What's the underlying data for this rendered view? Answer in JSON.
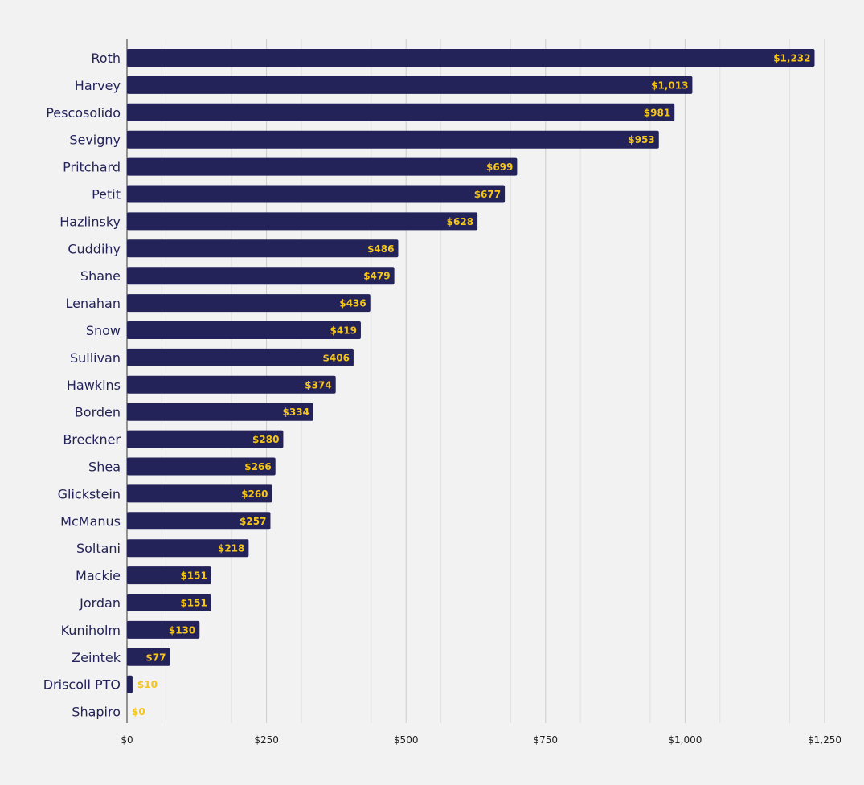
{
  "chart_data": {
    "type": "bar",
    "orientation": "horizontal",
    "categories": [
      "Roth",
      "Harvey",
      "Pescosolido",
      "Sevigny",
      "Pritchard",
      "Petit",
      "Hazlinsky",
      "Cuddihy",
      "Shane",
      "Lenahan",
      "Snow",
      "Sullivan",
      "Hawkins",
      "Borden",
      "Breckner",
      "Shea",
      "Glickstein",
      "McManus",
      "Soltani",
      "Mackie",
      "Jordan",
      "Kuniholm",
      "Zeintek",
      "Driscoll PTO",
      "Shapiro"
    ],
    "values": [
      1232,
      1013,
      981,
      953,
      699,
      677,
      628,
      486,
      479,
      436,
      419,
      406,
      374,
      334,
      280,
      266,
      260,
      257,
      218,
      151,
      151,
      130,
      77,
      10,
      0
    ],
    "data_labels": [
      "$1,232",
      "$1,013",
      "$981",
      "$953",
      "$699",
      "$677",
      "$628",
      "$486",
      "$479",
      "$436",
      "$419",
      "$406",
      "$374",
      "$334",
      "$280",
      "$266",
      "$260",
      "$257",
      "$218",
      "$151",
      "$151",
      "$130",
      "$77",
      "$10",
      "$0"
    ],
    "x_ticks": [
      0,
      250,
      500,
      750,
      1000,
      1250
    ],
    "x_tick_labels": [
      "$0",
      "$250",
      "$500",
      "$750",
      "$1,000",
      "$1,250"
    ],
    "xlim": [
      0,
      1250
    ],
    "grid": true,
    "title": "",
    "xlabel": "",
    "ylabel": "",
    "colors": {
      "bar": "#23235a",
      "label": "#f5c518",
      "background": "#f2f2f2",
      "grid_major": "#cccccc",
      "grid_minor": "#e0e0e0",
      "category_text": "#23235a"
    }
  }
}
